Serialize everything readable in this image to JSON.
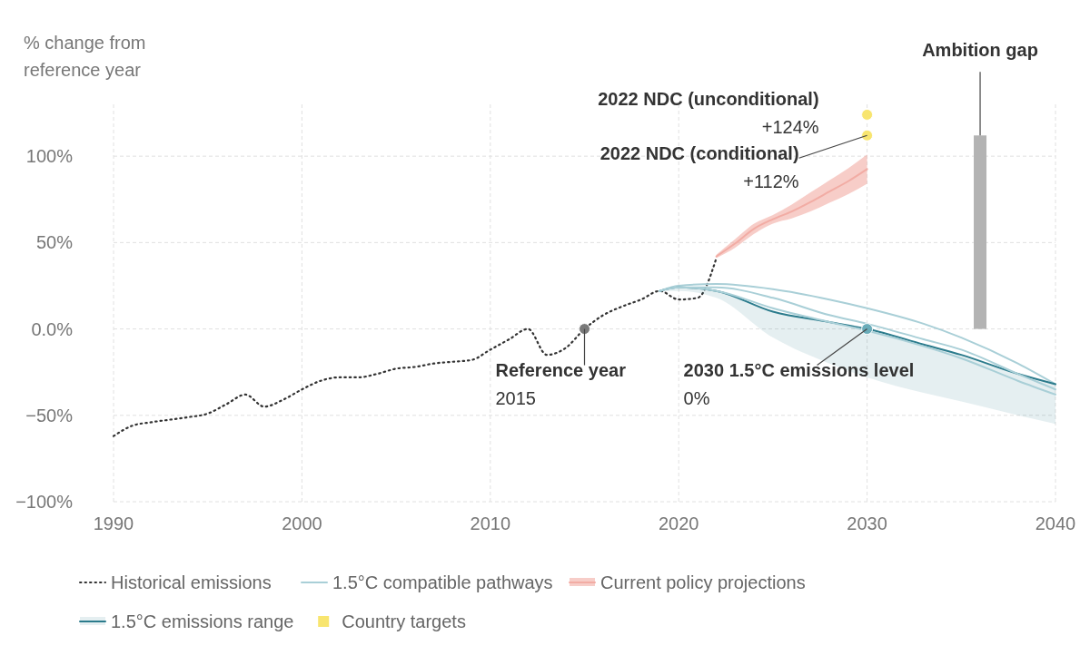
{
  "chart_data": {
    "type": "line",
    "ylabel": "% change from\nreference year",
    "xlim": [
      1990,
      2040
    ],
    "xticks": [
      1990,
      2000,
      2010,
      2020,
      2030,
      2040
    ],
    "ylim": [
      -100,
      130
    ],
    "yticks": [
      {
        "value": -100,
        "label": "−100%"
      },
      {
        "value": -50,
        "label": "−50%"
      },
      {
        "value": 0,
        "label": "0.0%"
      },
      {
        "value": 50,
        "label": "50%"
      },
      {
        "value": 100,
        "label": "100%"
      }
    ],
    "grid": true,
    "legend": "bottom",
    "series": [
      {
        "type": "line",
        "name": "Historical emissions",
        "color": "#333333",
        "line_style": "dotted",
        "x": [
          1990,
          1991,
          1992,
          1993,
          1994,
          1995,
          1996,
          1997,
          1998,
          1999,
          2000,
          2001,
          2002,
          2003,
          2004,
          2005,
          2006,
          2007,
          2008,
          2009,
          2010,
          2011,
          2012,
          2013,
          2014,
          2015,
          2016,
          2017,
          2018,
          2019,
          2020,
          2021,
          2022
        ],
        "values": [
          -62,
          -56,
          -54,
          -52.5,
          -51,
          -49,
          -43.5,
          -38,
          -45,
          -41,
          -35,
          -30,
          -28,
          -28,
          -26,
          -23,
          -22,
          -20,
          -19,
          -18,
          -12,
          -6,
          0,
          -15,
          -11,
          0,
          8,
          13,
          17,
          22,
          17,
          18,
          41
        ]
      },
      {
        "type": "line",
        "name": "1.5°C compatible pathways",
        "color": "#a9cfd7",
        "x": [
          2019,
          2020,
          2022,
          2025,
          2028,
          2030,
          2033,
          2035,
          2038,
          2040
        ],
        "values": [
          22,
          25,
          26,
          23,
          17,
          12,
          3,
          -5,
          -20,
          -32
        ]
      },
      {
        "type": "line",
        "name": "Current policy projections",
        "color": "#f2aca4",
        "x": [
          2022,
          2023,
          2024,
          2025,
          2026,
          2027,
          2028,
          2029,
          2030
        ],
        "values": [
          42,
          49.5,
          58,
          63.5,
          68,
          73.5,
          79.5,
          85.5,
          92.5
        ],
        "lower": [
          41,
          47,
          55,
          61,
          64,
          68,
          73,
          78,
          84
        ],
        "upper": [
          43,
          52,
          61,
          66,
          72,
          79,
          86,
          93,
          101
        ]
      },
      {
        "type": "line",
        "name": "1.5°C emissions range",
        "color": "#2b7b8c",
        "x": [
          2019,
          2020,
          2022,
          2025,
          2028,
          2030,
          2033,
          2035,
          2038,
          2040
        ],
        "values": [
          22,
          24,
          22,
          10,
          4,
          0,
          -9,
          -15,
          -26,
          -32
        ],
        "lower": [
          22,
          22,
          18,
          -5,
          -20,
          -28,
          -37,
          -42,
          -50,
          -55
        ],
        "upper": [
          22,
          24,
          22,
          10,
          4,
          0,
          -9,
          -15,
          -26,
          -32
        ]
      },
      {
        "type": "scatter",
        "name": "Country targets",
        "color": "#f8e56f",
        "marker": "circle",
        "x": [
          2030,
          2030
        ],
        "values": [
          124,
          112
        ]
      },
      {
        "color": "#a9cfd7",
        "x": [
          2019,
          2020,
          2022,
          2025,
          2028,
          2030,
          2033,
          2035,
          2038,
          2040
        ],
        "values": [
          22,
          24,
          24,
          18,
          8,
          3,
          -6,
          -12,
          -26,
          -35
        ]
      },
      {
        "color": "#a9cfd7",
        "x": [
          2019,
          2020,
          2022,
          2025,
          2028,
          2030,
          2033,
          2035,
          2038,
          2040
        ],
        "values": [
          22,
          24,
          22,
          12,
          4,
          -1,
          -10,
          -17,
          -30,
          -38
        ]
      },
      {
        "type": "bar",
        "color": "#b3b3b3",
        "x": [
          2036
        ],
        "base": [
          0
        ],
        "values": [
          112
        ]
      },
      {
        "type": "scatter",
        "colors": [
          "#7a7a7a",
          "#6aacb9"
        ],
        "x": [
          2015,
          2030
        ],
        "values": [
          0,
          0
        ]
      }
    ],
    "annotations": [
      {
        "text": "2022 NDC (unconditional)\n+124%",
        "x": 2030,
        "y": 124
      },
      {
        "text": "2022 NDC (conditional)\n+112%",
        "x": 2030,
        "y": 112
      },
      {
        "text": "Reference year\n2015",
        "x": 2015,
        "y": 0
      },
      {
        "text": "2030 1.5°C emissions level\n0%",
        "x": 2030,
        "y": 0
      },
      {
        "text": "Ambition gap",
        "x": 2036,
        "y": 112
      }
    ]
  }
}
